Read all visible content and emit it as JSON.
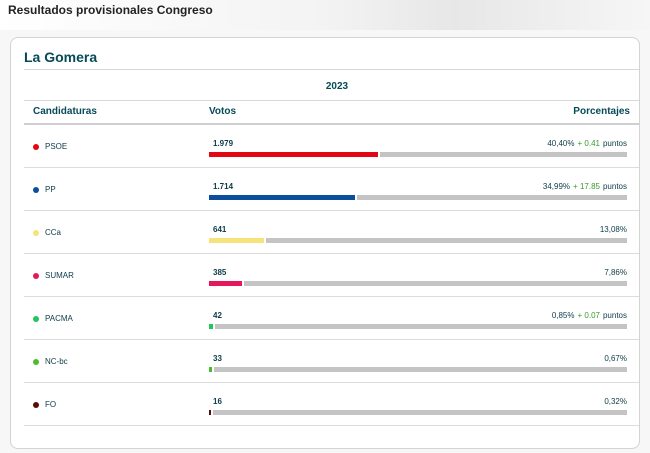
{
  "header": {
    "title": "Resultados provisionales Congreso"
  },
  "region": "La Gomera",
  "year": "2023",
  "columns": {
    "candidaturas": "Candidaturas",
    "votos": "Votos",
    "porcentajes": "Porcentajes"
  },
  "rows": [
    {
      "party": "PSOE",
      "votes": "1.979",
      "pct": "40,40%",
      "delta": "+ 0.41",
      "unit": "puntos",
      "share": 0.404,
      "color": "#e30613"
    },
    {
      "party": "PP",
      "votes": "1.714",
      "pct": "34,99%",
      "delta": "+ 17.85",
      "unit": "puntos",
      "share": 0.3499,
      "color": "#0b4f9c"
    },
    {
      "party": "CCa",
      "votes": "641",
      "pct": "13,08%",
      "delta": "",
      "unit": "",
      "share": 0.1308,
      "color": "#f6e47a"
    },
    {
      "party": "SUMAR",
      "votes": "385",
      "pct": "7,86%",
      "delta": "",
      "unit": "",
      "share": 0.0786,
      "color": "#e6175c"
    },
    {
      "party": "PACMA",
      "votes": "42",
      "pct": "0,85%",
      "delta": "+ 0.07",
      "unit": "puntos",
      "share": 0.0085,
      "color": "#22c55e"
    },
    {
      "party": "NC-bc",
      "votes": "33",
      "pct": "0,67%",
      "delta": "",
      "unit": "",
      "share": 0.0067,
      "color": "#4dbb2e"
    },
    {
      "party": "FO",
      "votes": "16",
      "pct": "0,32%",
      "delta": "",
      "unit": "",
      "share": 0.0032,
      "color": "#5c0a0a"
    }
  ]
}
